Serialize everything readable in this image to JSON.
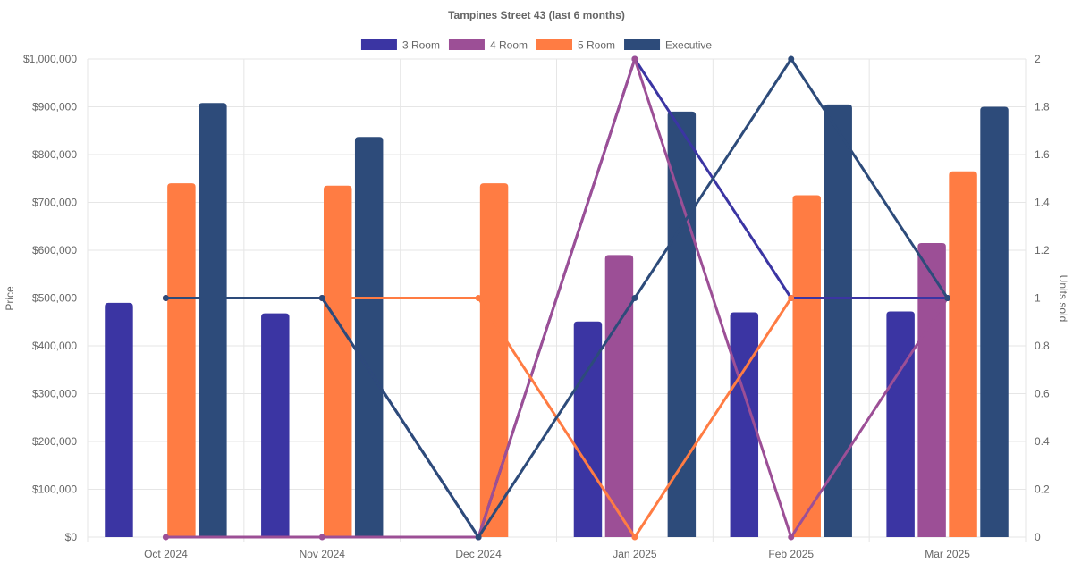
{
  "chart_data": {
    "type": "bar+line",
    "title": "Tampines Street 43 (last 6 months)",
    "categories": [
      "Oct 2024",
      "Nov 2024",
      "Dec 2024",
      "Jan 2025",
      "Feb 2025",
      "Mar 2025"
    ],
    "ylabel": "Price",
    "y2label": "Units sold",
    "ylim": [
      0,
      1000000
    ],
    "y2lim": [
      0,
      2
    ],
    "y_ticks": [
      "$0",
      "$100,000",
      "$200,000",
      "$300,000",
      "$400,000",
      "$500,000",
      "$600,000",
      "$700,000",
      "$800,000",
      "$900,000",
      "$1,000,000"
    ],
    "y_tick_values": [
      0,
      100000,
      200000,
      300000,
      400000,
      500000,
      600000,
      700000,
      800000,
      900000,
      1000000
    ],
    "y2_ticks": [
      "0",
      "0.2",
      "0.4",
      "0.6",
      "0.8",
      "1",
      "1.2",
      "1.4",
      "1.6",
      "1.8",
      "2"
    ],
    "y2_tick_values": [
      0,
      0.2,
      0.4,
      0.6,
      0.8,
      1,
      1.2,
      1.4,
      1.6,
      1.8,
      2
    ],
    "legend_position": "top-center",
    "series": [
      {
        "name": "3 Room",
        "color": "#3b35a3",
        "price": [
          490000,
          468000,
          null,
          451000,
          470000,
          472000
        ],
        "units": [
          1,
          1,
          0,
          2,
          1,
          1
        ]
      },
      {
        "name": "4 Room",
        "color": "#9c4f96",
        "price": [
          null,
          null,
          null,
          590000,
          null,
          615000
        ],
        "units": [
          0,
          0,
          0,
          2,
          0,
          1
        ]
      },
      {
        "name": "5 Room",
        "color": "#ff7c43",
        "price": [
          740000,
          735000,
          740000,
          null,
          715000,
          765000
        ],
        "units": [
          1,
          1,
          1,
          0,
          1,
          null
        ]
      },
      {
        "name": "Executive",
        "color": "#2d4b7a",
        "price": [
          908000,
          837000,
          null,
          890000,
          905000,
          900000
        ],
        "units": [
          1,
          1,
          0,
          1,
          2,
          1
        ]
      }
    ]
  }
}
